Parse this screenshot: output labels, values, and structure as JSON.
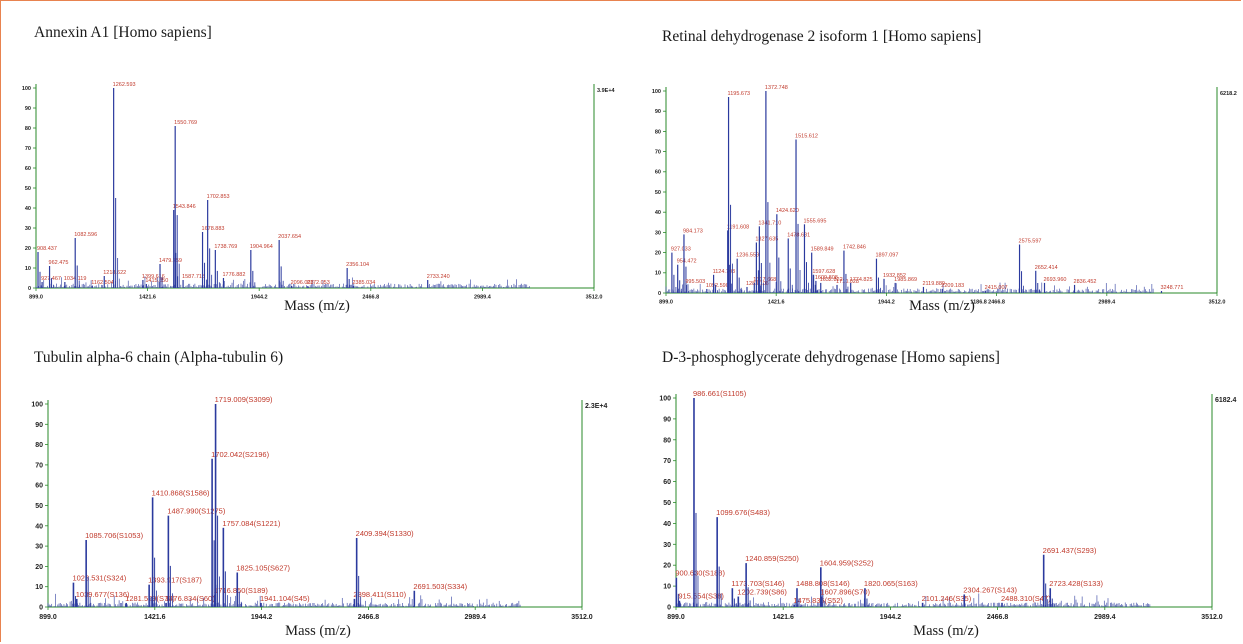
{
  "chart_data": [
    {
      "type": "bar",
      "title": "Annexin A1 [Homo sapiens]",
      "xlabel": "Mass (m/z)",
      "xlim": [
        899.0,
        3512.0
      ],
      "ylim": [
        0,
        100
      ],
      "yticks": [
        "0",
        "10",
        "20",
        "30",
        "40",
        "50",
        "60",
        "70",
        "80",
        "90",
        "100"
      ],
      "xticks": [
        "899.0",
        "1421.6",
        "1944.2",
        "2466.8",
        "2989.4",
        "3512.0"
      ],
      "max_intensity": "3.9E+4",
      "accent": "#2b3a9e",
      "label_color": "#c0392b",
      "peaks": [
        {
          "x": 908.437,
          "y": 18,
          "label": "908.437"
        },
        {
          "x": 927.467,
          "y": 3,
          "label": "927.467"
        },
        {
          "x": 962.475,
          "y": 11,
          "label": "962.475"
        },
        {
          "x": 1034.119,
          "y": 3,
          "label": "1034.119"
        },
        {
          "x": 1082.596,
          "y": 25,
          "label": "1082.596"
        },
        {
          "x": 1162.504,
          "y": 1,
          "label": "1162.504"
        },
        {
          "x": 1218.622,
          "y": 6,
          "label": "1218.622"
        },
        {
          "x": 1262.593,
          "y": 100,
          "label": "1262.593"
        },
        {
          "x": 1399.616,
          "y": 4,
          "label": "1399.616"
        },
        {
          "x": 1415.85,
          "y": 2,
          "label": "1415.850"
        },
        {
          "x": 1479.759,
          "y": 12,
          "label": "1479.759"
        },
        {
          "x": 1543.846,
          "y": 39,
          "label": "1543.846"
        },
        {
          "x": 1550.769,
          "y": 81,
          "label": "1550.769"
        },
        {
          "x": 1587.718,
          "y": 4,
          "label": "1587.718"
        },
        {
          "x": 1678.883,
          "y": 28,
          "label": "1678.883"
        },
        {
          "x": 1702.853,
          "y": 44,
          "label": "1702.853"
        },
        {
          "x": 1738.769,
          "y": 19,
          "label": "1738.769"
        },
        {
          "x": 1776.882,
          "y": 5,
          "label": "1776.882"
        },
        {
          "x": 1904.964,
          "y": 19,
          "label": "1904.964"
        },
        {
          "x": 2037.654,
          "y": 24,
          "label": "2037.654"
        },
        {
          "x": 2096.003,
          "y": 1,
          "label": "2096.003"
        },
        {
          "x": 2172.053,
          "y": 1,
          "label": "2172.053"
        },
        {
          "x": 2356.104,
          "y": 10,
          "label": "2356.104"
        },
        {
          "x": 2385.034,
          "y": 1,
          "label": "2385.034"
        },
        {
          "x": 2733.24,
          "y": 4,
          "label": "2733.240"
        }
      ]
    },
    {
      "type": "bar",
      "title": "Retinal dehydrogenase 2 isoform 1 [Homo sapiens]",
      "xlabel": "Mass (m/z)",
      "xlim": [
        899.0,
        3512.0
      ],
      "ylim": [
        0,
        100
      ],
      "yticks": [
        "0",
        "10",
        "20",
        "30",
        "40",
        "50",
        "60",
        "70",
        "80",
        "90",
        "100"
      ],
      "xticks": [
        "899.0",
        "1421.6",
        "1944.2",
        "2466.8",
        "2989.4",
        "3512.0"
      ],
      "max_intensity": "6218.2",
      "accent": "#2b3a9e",
      "label_color": "#c0392b",
      "peaks": [
        {
          "x": 927.033,
          "y": 20,
          "label": "927.033"
        },
        {
          "x": 954.472,
          "y": 14,
          "label": "954.472"
        },
        {
          "x": 984.173,
          "y": 29,
          "label": "984.173"
        },
        {
          "x": 995.503,
          "y": 4,
          "label": "995.503"
        },
        {
          "x": 1092.59,
          "y": 2,
          "label": "1092.590"
        },
        {
          "x": 1124.703,
          "y": 9,
          "label": "1124.703"
        },
        {
          "x": 1191.608,
          "y": 31,
          "label": "1191.608"
        },
        {
          "x": 1195.673,
          "y": 97,
          "label": "1195.673"
        },
        {
          "x": 1236.559,
          "y": 17,
          "label": "1236.559"
        },
        {
          "x": 1283.106,
          "y": 3,
          "label": "1283.106"
        },
        {
          "x": 1317.668,
          "y": 5,
          "label": "1317.668"
        },
        {
          "x": 1327.635,
          "y": 25,
          "label": "1327.635"
        },
        {
          "x": 1341.71,
          "y": 33,
          "label": "1341.710"
        },
        {
          "x": 1372.748,
          "y": 100,
          "label": "1372.748"
        },
        {
          "x": 1424.62,
          "y": 39,
          "label": "1424.620"
        },
        {
          "x": 1478.681,
          "y": 27,
          "label": "1478.681"
        },
        {
          "x": 1515.612,
          "y": 76,
          "label": "1515.612"
        },
        {
          "x": 1555.695,
          "y": 34,
          "label": "1555.695"
        },
        {
          "x": 1589.849,
          "y": 20,
          "label": "1589.849"
        },
        {
          "x": 1597.628,
          "y": 9,
          "label": "1597.628"
        },
        {
          "x": 1609.808,
          "y": 6,
          "label": "1609.808"
        },
        {
          "x": 1632.822,
          "y": 5,
          "label": "1632.822"
        },
        {
          "x": 1710.028,
          "y": 4,
          "label": "1710.028"
        },
        {
          "x": 1742.846,
          "y": 21,
          "label": "1742.846"
        },
        {
          "x": 1774.825,
          "y": 5,
          "label": "1774.825"
        },
        {
          "x": 1897.097,
          "y": 17,
          "label": "1897.097"
        },
        {
          "x": 1932.852,
          "y": 7,
          "label": "1932.852"
        },
        {
          "x": 1985.869,
          "y": 5,
          "label": "1985.869"
        },
        {
          "x": 2119.889,
          "y": 3,
          "label": "2119.889"
        },
        {
          "x": 2209.183,
          "y": 2,
          "label": "2209.183"
        },
        {
          "x": 2415.007,
          "y": 1,
          "label": "2415.007"
        },
        {
          "x": 2575.597,
          "y": 24,
          "label": "2575.597"
        },
        {
          "x": 2652.414,
          "y": 11,
          "label": "2652.414"
        },
        {
          "x": 2693.96,
          "y": 5,
          "label": "2693.960"
        },
        {
          "x": 2836.452,
          "y": 4,
          "label": "2836.452"
        },
        {
          "x": 3248.771,
          "y": 1,
          "label": "3248.771"
        }
      ],
      "overlay_tick_label": "1186.8",
      "overlay_tick_x": 2466.8
    },
    {
      "type": "bar",
      "title": "Tubulin alpha-6 chain (Alpha-tubulin 6)",
      "xlabel": "Mass (m/z)",
      "xlim": [
        899.0,
        3512.0
      ],
      "ylim": [
        0,
        100
      ],
      "yticks": [
        "0",
        "10",
        "20",
        "30",
        "40",
        "50",
        "60",
        "70",
        "80",
        "90",
        "100"
      ],
      "xticks": [
        "899.0",
        "1421.6",
        "1944.2",
        "2466.8",
        "2989.4",
        "3512.0"
      ],
      "max_intensity": "2.3E+4",
      "accent": "#2b3a9e",
      "label_color": "#c0392b",
      "peaks": [
        {
          "x": 1023.531,
          "y": 12,
          "label": "1023.531(S324)"
        },
        {
          "x": 1039.677,
          "y": 4,
          "label": "1039.677(S136)"
        },
        {
          "x": 1085.706,
          "y": 33,
          "label": "1085.706(S1053)"
        },
        {
          "x": 1281.529,
          "y": 2,
          "label": "1281.529(S76)"
        },
        {
          "x": 1393.917,
          "y": 11,
          "label": "1393.917(S187)"
        },
        {
          "x": 1410.868,
          "y": 54,
          "label": "1410.868(S1586)"
        },
        {
          "x": 1476.834,
          "y": 2,
          "label": "1476.834(S60)"
        },
        {
          "x": 1487.99,
          "y": 45,
          "label": "1487.990(S1275)"
        },
        {
          "x": 1702.042,
          "y": 73,
          "label": "1702.042(S2196)"
        },
        {
          "x": 1716.85,
          "y": 6,
          "label": "1716.850(S189)"
        },
        {
          "x": 1719.009,
          "y": 100,
          "label": "1719.009(S3099)"
        },
        {
          "x": 1757.084,
          "y": 39,
          "label": "1757.084(S1221)"
        },
        {
          "x": 1825.105,
          "y": 17,
          "label": "1825.105(S627)"
        },
        {
          "x": 1941.104,
          "y": 2,
          "label": "1941.104(S45)"
        },
        {
          "x": 2398.411,
          "y": 4,
          "label": "2398.411(S110)"
        },
        {
          "x": 2409.394,
          "y": 34,
          "label": "2409.394(S1330)"
        },
        {
          "x": 2691.503,
          "y": 8,
          "label": "2691.503(S334)"
        }
      ]
    },
    {
      "type": "bar",
      "title": "D-3-phosphoglycerate dehydrogenase [Homo sapiens]",
      "xlabel": "Mass (m/z)",
      "xlim": [
        899.0,
        3512.0
      ],
      "ylim": [
        0,
        100
      ],
      "yticks": [
        "0",
        "10",
        "20",
        "30",
        "40",
        "50",
        "60",
        "70",
        "80",
        "90",
        "100"
      ],
      "xticks": [
        "899.0",
        "1421.6",
        "1944.2",
        "2466.8",
        "2989.4",
        "3512.0"
      ],
      "max_intensity": "6182.4",
      "accent": "#2b3a9e",
      "label_color": "#c0392b",
      "peaks": [
        {
          "x": 900.63,
          "y": 14,
          "label": "900.630(S188)"
        },
        {
          "x": 915.554,
          "y": 3,
          "label": "915.554(S38)"
        },
        {
          "x": 986.661,
          "y": 100,
          "label": "986.661(S1105)"
        },
        {
          "x": 1099.676,
          "y": 43,
          "label": "1099.676(S483)"
        },
        {
          "x": 1173.703,
          "y": 9,
          "label": "1173.703(S146)"
        },
        {
          "x": 1202.739,
          "y": 5,
          "label": "1202.739(S86)"
        },
        {
          "x": 1240.859,
          "y": 21,
          "label": "1240.859(S250)"
        },
        {
          "x": 1475.835,
          "y": 1,
          "label": "1475.835(S52)"
        },
        {
          "x": 1488.808,
          "y": 9,
          "label": "1488.808(S146)"
        },
        {
          "x": 1604.959,
          "y": 19,
          "label": "1604.959(S252)"
        },
        {
          "x": 1607.896,
          "y": 5,
          "label": "1607.896(S70)"
        },
        {
          "x": 1820.065,
          "y": 9,
          "label": "1820.065(S163)"
        },
        {
          "x": 2101.246,
          "y": 2,
          "label": "2101.246(S35)"
        },
        {
          "x": 2304.267,
          "y": 6,
          "label": "2304.267(S143)"
        },
        {
          "x": 2488.31,
          "y": 2,
          "label": "2488.310(S47)"
        },
        {
          "x": 2691.437,
          "y": 25,
          "label": "2691.437(S293)"
        },
        {
          "x": 2723.428,
          "y": 9,
          "label": "2723.428(S133)"
        }
      ]
    }
  ]
}
